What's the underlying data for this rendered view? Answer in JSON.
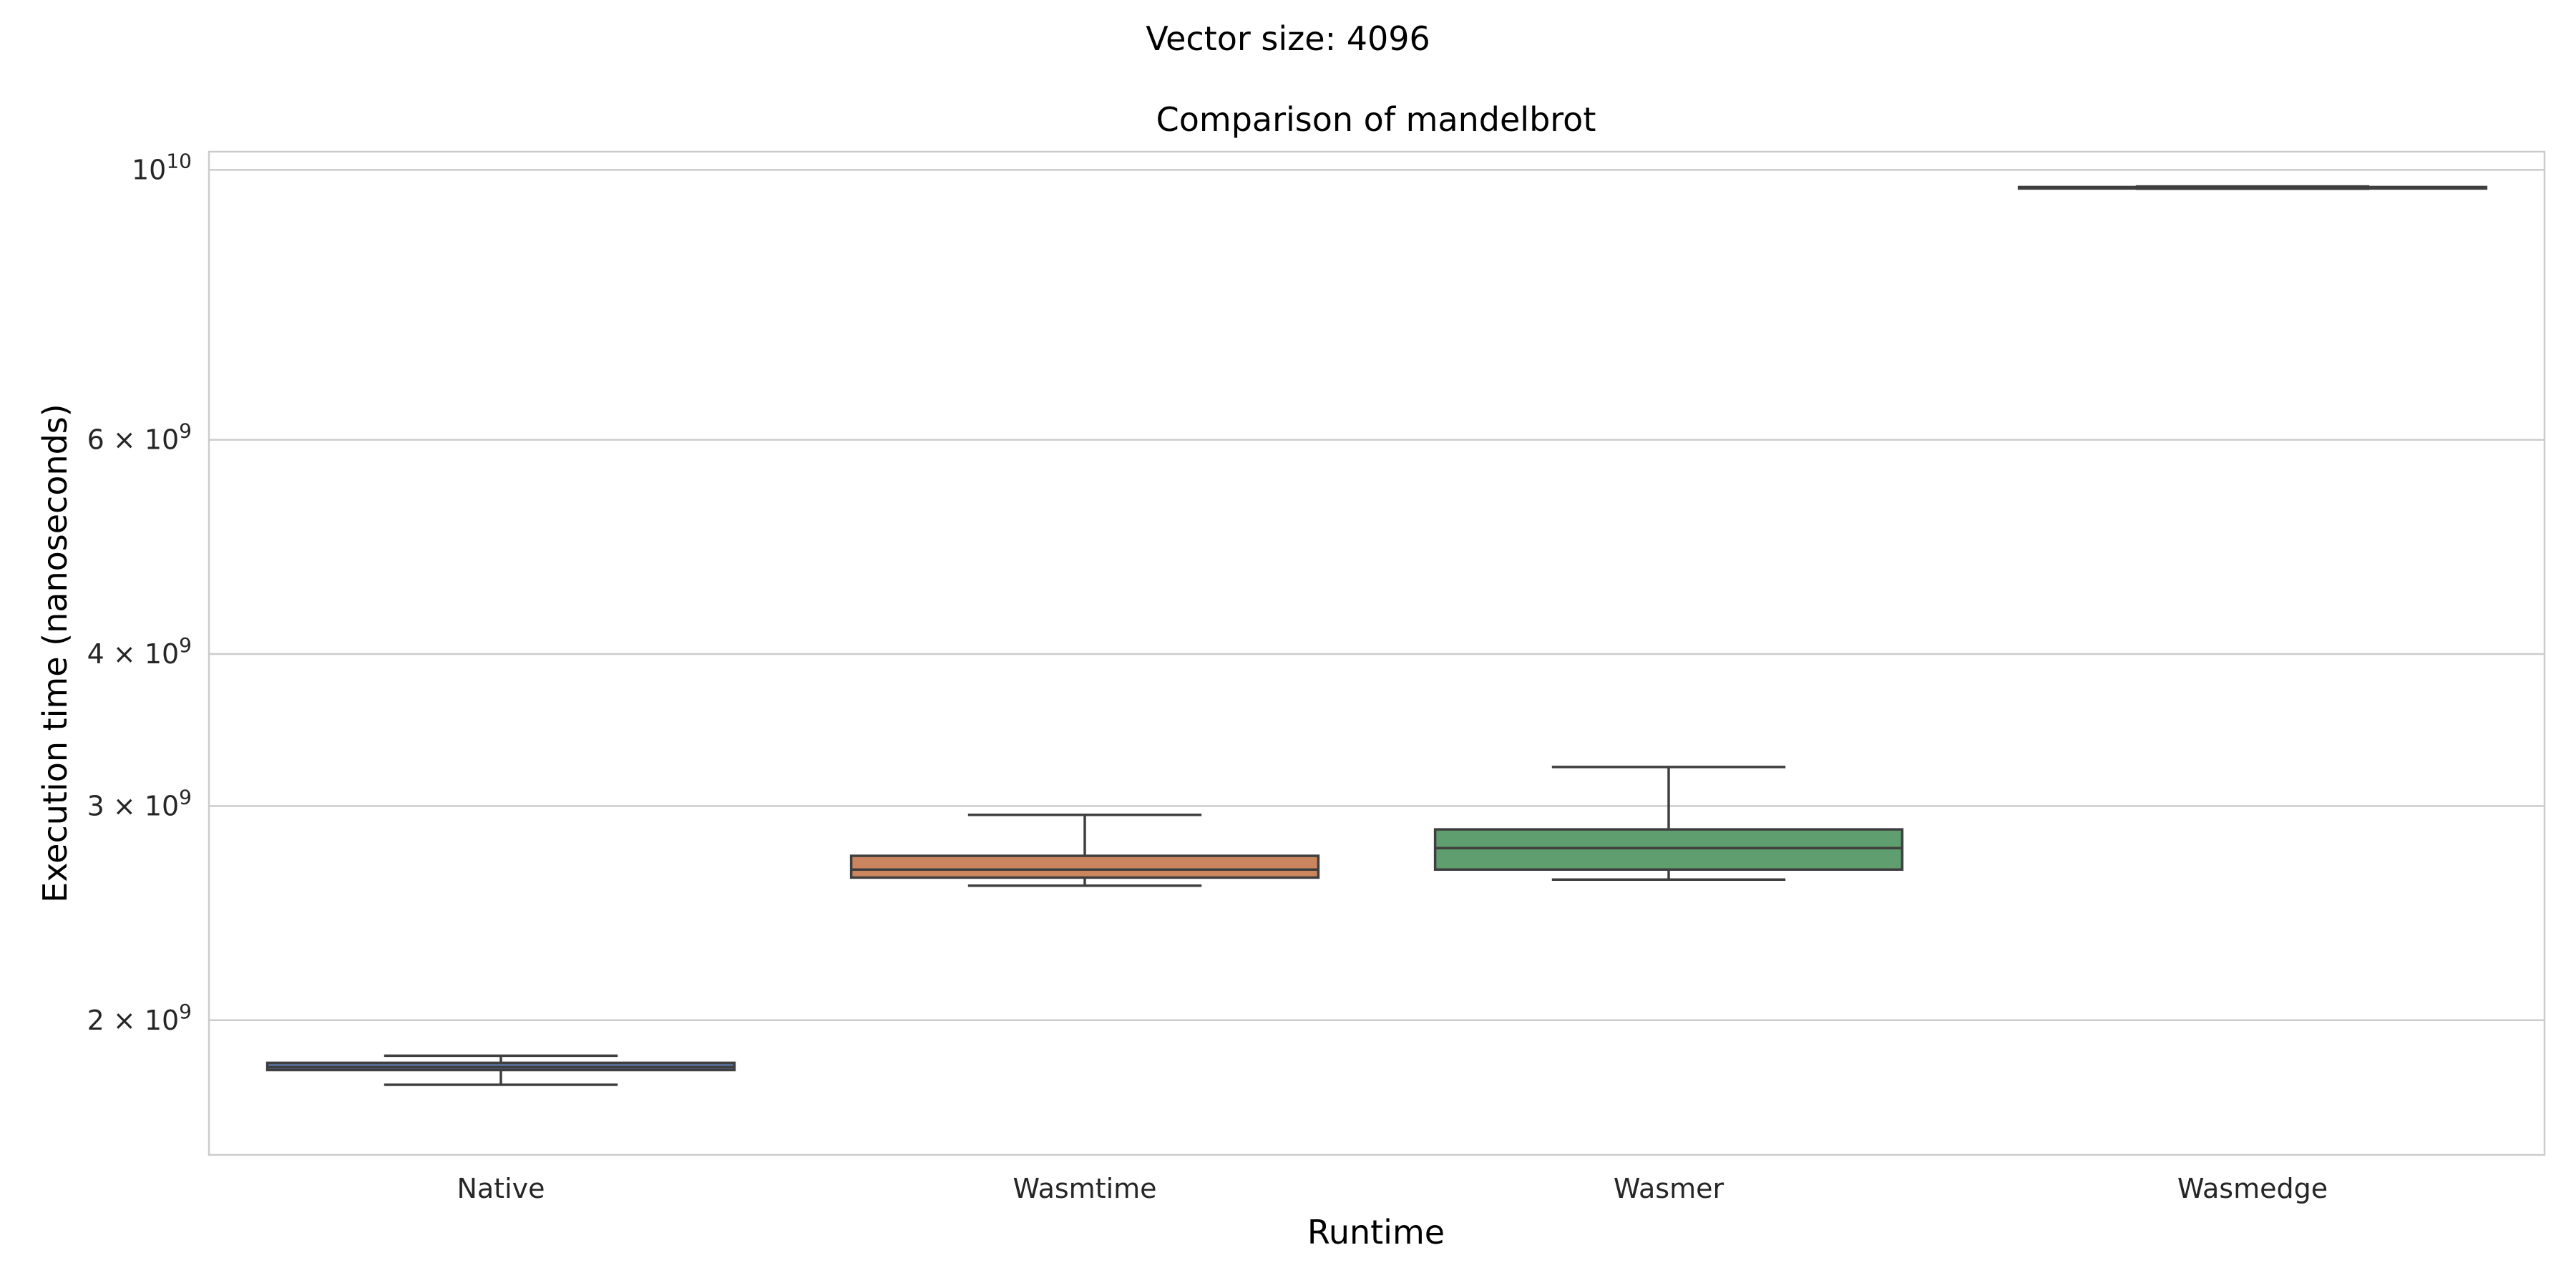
{
  "figure": {
    "suptitle": "Vector size: 4096"
  },
  "chart_data": {
    "type": "box",
    "title": "Comparison of mandelbrot",
    "xlabel": "Runtime",
    "ylabel": "Execution time (nanoseconds)",
    "yscale": "log",
    "ylim": [
      1550000000,
      10350000000
    ],
    "grid": true,
    "yticks": [
      {
        "value": 2000000000,
        "mantissa": "2",
        "exponent": "9"
      },
      {
        "value": 3000000000,
        "mantissa": "3",
        "exponent": "9"
      },
      {
        "value": 4000000000,
        "mantissa": "4",
        "exponent": "9"
      },
      {
        "value": 6000000000,
        "mantissa": "6",
        "exponent": "9"
      },
      {
        "value": 10000000000,
        "mantissa": "",
        "exponent": "10"
      }
    ],
    "categories": [
      "Native",
      "Wasmtime",
      "Wasmer",
      "Wasmedge"
    ],
    "boxes": [
      {
        "category": "Native",
        "color": "#5a72a0",
        "whisker_low": 1770000000,
        "q1": 1820000000,
        "median": 1830000000,
        "q3": 1845000000,
        "whisker_high": 1870000000
      },
      {
        "category": "Wasmtime",
        "color": "#cb8660",
        "whisker_low": 2580000000,
        "q1": 2620000000,
        "median": 2660000000,
        "q3": 2730000000,
        "whisker_high": 2950000000
      },
      {
        "category": "Wasmer",
        "color": "#5f9e6e",
        "whisker_low": 2610000000,
        "q1": 2660000000,
        "median": 2770000000,
        "q3": 2870000000,
        "whisker_high": 3230000000
      },
      {
        "category": "Wasmedge",
        "color": "#5a72a0",
        "whisker_low": 9650000000,
        "q1": 9670000000,
        "median": 9670000000,
        "q3": 9680000000,
        "whisker_high": 9690000000
      }
    ]
  }
}
